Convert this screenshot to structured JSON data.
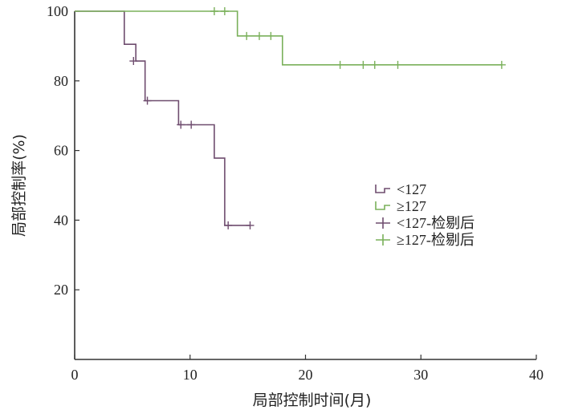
{
  "chart_data": {
    "type": "line",
    "subtype": "kaplan-meier",
    "title": "",
    "xlabel": "局部控制时间(月)",
    "ylabel": "局部控制率(%)",
    "xlim": [
      0,
      40
    ],
    "ylim": [
      0,
      100
    ],
    "xticks": [
      0,
      10,
      20,
      30,
      40
    ],
    "yticks": [
      20,
      40,
      60,
      80,
      100
    ],
    "grid": false,
    "legend_position": "right-middle",
    "series": [
      {
        "name": "<127",
        "color": "#6f4d6f",
        "steps": [
          [
            0,
            100
          ],
          [
            4.3,
            100
          ],
          [
            4.3,
            90.5
          ],
          [
            5.3,
            90.5
          ],
          [
            5.3,
            85.7
          ],
          [
            6.1,
            85.7
          ],
          [
            6.1,
            74.3
          ],
          [
            9,
            74.3
          ],
          [
            9,
            67.4
          ],
          [
            12.1,
            67.4
          ],
          [
            12.1,
            57.8
          ],
          [
            13,
            57.8
          ],
          [
            13,
            38.5
          ],
          [
            15.2,
            38.5
          ]
        ],
        "censored": [
          [
            5.1,
            85.7
          ],
          [
            6.3,
            74.3
          ],
          [
            9.2,
            67.4
          ],
          [
            10.1,
            67.4
          ],
          [
            13.3,
            38.5
          ],
          [
            15.2,
            38.5
          ]
        ]
      },
      {
        "name": "≥127",
        "color": "#7ab05a",
        "steps": [
          [
            0,
            100
          ],
          [
            14.1,
            100
          ],
          [
            14.1,
            92.9
          ],
          [
            18,
            92.9
          ],
          [
            18,
            84.6
          ],
          [
            37,
            84.6
          ]
        ],
        "censored": [
          [
            12.1,
            100
          ],
          [
            13,
            100
          ],
          [
            14.9,
            92.9
          ],
          [
            16,
            92.9
          ],
          [
            17,
            92.9
          ],
          [
            23,
            84.6
          ],
          [
            25,
            84.6
          ],
          [
            26,
            84.6
          ],
          [
            28,
            84.6
          ],
          [
            37,
            84.6
          ]
        ]
      }
    ],
    "legend": [
      {
        "label": "<127",
        "series": 0,
        "marker": "step"
      },
      {
        "label": "≥127",
        "series": 1,
        "marker": "step"
      },
      {
        "label": "<127-检剔后",
        "series": 0,
        "marker": "plus"
      },
      {
        "label": "≥127-检剔后",
        "series": 1,
        "marker": "plus"
      }
    ]
  }
}
